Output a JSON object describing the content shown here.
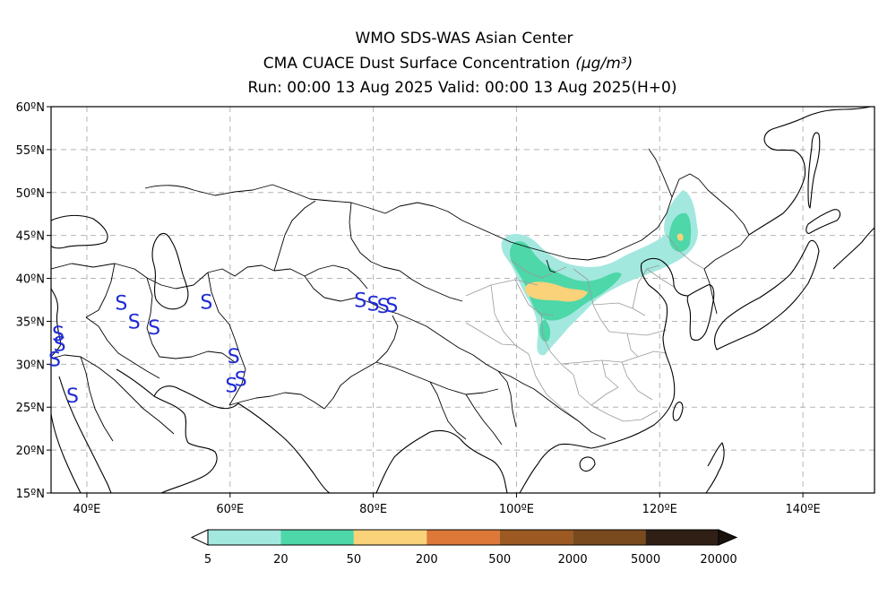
{
  "title": {
    "line1": "WMO SDS-WAS Asian Center",
    "line2": "CMA CUACE Dust Surface Concentration",
    "unit": "(μg/m³)",
    "line3": "Run: 00:00 13 Aug 2025    Valid: 00:00 13 Aug 2025(H+0)"
  },
  "map": {
    "lon_range": [
      35,
      150
    ],
    "lat_range": [
      15,
      60
    ],
    "lat_ticks": [
      {
        "value": 60,
        "label": "60ºN"
      },
      {
        "value": 55,
        "label": "55ºN"
      },
      {
        "value": 50,
        "label": "50ºN"
      },
      {
        "value": 45,
        "label": "45ºN"
      },
      {
        "value": 40,
        "label": "40ºN"
      },
      {
        "value": 35,
        "label": "35ºN"
      },
      {
        "value": 30,
        "label": "30ºN"
      },
      {
        "value": 25,
        "label": "25ºN"
      },
      {
        "value": 20,
        "label": "20ºN"
      },
      {
        "value": 15,
        "label": "15ºN"
      }
    ],
    "lon_ticks": [
      {
        "value": 40,
        "label": "40ºE"
      },
      {
        "value": 60,
        "label": "60ºE"
      },
      {
        "value": 80,
        "label": "80ºE"
      },
      {
        "value": 100,
        "label": "100ºE"
      },
      {
        "value": 120,
        "label": "120ºE"
      },
      {
        "value": 140,
        "label": "140ºE"
      }
    ],
    "grid": true,
    "dust_storm_symbol": "S",
    "dust_storms": [
      {
        "lon": 36.0,
        "lat": 33.6
      },
      {
        "lon": 36.2,
        "lat": 32.4
      },
      {
        "lon": 35.5,
        "lat": 30.6
      },
      {
        "lon": 38.0,
        "lat": 26.4
      },
      {
        "lon": 44.8,
        "lat": 37.2
      },
      {
        "lon": 46.6,
        "lat": 35.0
      },
      {
        "lon": 49.4,
        "lat": 34.3
      },
      {
        "lon": 56.7,
        "lat": 37.3
      },
      {
        "lon": 60.5,
        "lat": 31.0
      },
      {
        "lon": 61.5,
        "lat": 28.3
      },
      {
        "lon": 60.2,
        "lat": 27.6
      },
      {
        "lon": 78.2,
        "lat": 37.5
      },
      {
        "lon": 80.0,
        "lat": 37.1
      },
      {
        "lon": 81.4,
        "lat": 36.8
      },
      {
        "lon": 82.6,
        "lat": 36.9
      }
    ]
  },
  "legend": {
    "bins": [
      {
        "label": "5",
        "color": "#a3e8de"
      },
      {
        "label": "20",
        "color": "#4ed7a9"
      },
      {
        "label": "50",
        "color": "#f9d27a"
      },
      {
        "label": "200",
        "color": "#dd7838"
      },
      {
        "label": "500",
        "color": "#9c5a22"
      },
      {
        "label": "2000",
        "color": "#7a4a1f"
      },
      {
        "label": "5000",
        "color": "#2f1f14"
      },
      {
        "label": "20000",
        "color": ""
      }
    ],
    "under_color": "#ffffff",
    "over_color": "#1a130d"
  }
}
